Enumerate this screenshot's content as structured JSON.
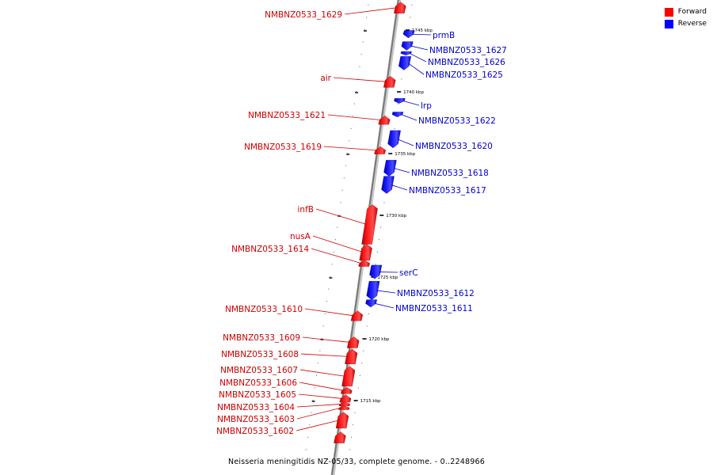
{
  "legend": {
    "forward_label": "Forward",
    "reverse_label": "Reverse",
    "forward_color": "#ff0000",
    "reverse_color": "#0000ff"
  },
  "caption": "Neisseria meningitidis NZ-05/33, complete genome. - 0..2248966",
  "ticks": [
    {
      "label": "1745 kbp",
      "kbp": 1745
    },
    {
      "label": "1740 kbp",
      "kbp": 1740
    },
    {
      "label": "1735 kbp",
      "kbp": 1735
    },
    {
      "label": "1730 kbp",
      "kbp": 1730
    },
    {
      "label": "1725 kbp",
      "kbp": 1725
    },
    {
      "label": "1720 kbp",
      "kbp": 1720
    },
    {
      "label": "1715 kbp",
      "kbp": 1715
    }
  ],
  "features": [
    {
      "name": "NMBNZ0533_1629",
      "strand": "forward",
      "start_kbp": 1746.3,
      "end_kbp": 1747.2
    },
    {
      "name": "prmB",
      "strand": "reverse",
      "start_kbp": 1744.3,
      "end_kbp": 1744.9
    },
    {
      "name": "NMBNZ0533_1627",
      "strand": "reverse",
      "start_kbp": 1743.3,
      "end_kbp": 1744.0
    },
    {
      "name": "NMBNZ0533_1626",
      "strand": "reverse",
      "start_kbp": 1742.9,
      "end_kbp": 1743.2
    },
    {
      "name": "NMBNZ0533_1625",
      "strand": "reverse",
      "start_kbp": 1741.7,
      "end_kbp": 1742.8
    },
    {
      "name": "air",
      "strand": "forward",
      "start_kbp": 1740.3,
      "end_kbp": 1741.2
    },
    {
      "name": "lrp",
      "strand": "reverse",
      "start_kbp": 1739.0,
      "end_kbp": 1739.4
    },
    {
      "name": "NMBNZ0533_1622",
      "strand": "reverse",
      "start_kbp": 1737.9,
      "end_kbp": 1738.3
    },
    {
      "name": "NMBNZ0533_1621",
      "strand": "forward",
      "start_kbp": 1737.3,
      "end_kbp": 1738.0
    },
    {
      "name": "NMBNZ0533_1620",
      "strand": "reverse",
      "start_kbp": 1735.4,
      "end_kbp": 1736.8
    },
    {
      "name": "NMBNZ0533_1619",
      "strand": "forward",
      "start_kbp": 1734.9,
      "end_kbp": 1735.5
    },
    {
      "name": "NMBNZ0533_1618",
      "strand": "reverse",
      "start_kbp": 1733.1,
      "end_kbp": 1734.4
    },
    {
      "name": "NMBNZ0533_1617",
      "strand": "reverse",
      "start_kbp": 1731.7,
      "end_kbp": 1733.1
    },
    {
      "name": "infB",
      "strand": "forward",
      "start_kbp": 1727.6,
      "end_kbp": 1730.8
    },
    {
      "name": "nusA",
      "strand": "forward",
      "start_kbp": 1726.3,
      "end_kbp": 1727.6
    },
    {
      "name": "NMBNZ0533_1614",
      "strand": "forward",
      "start_kbp": 1725.8,
      "end_kbp": 1726.3
    },
    {
      "name": "serC",
      "strand": "reverse",
      "start_kbp": 1724.8,
      "end_kbp": 1725.9
    },
    {
      "name": "NMBNZ0533_1612",
      "strand": "reverse",
      "start_kbp": 1723.1,
      "end_kbp": 1724.6
    },
    {
      "name": "NMBNZ0533_1611",
      "strand": "reverse",
      "start_kbp": 1722.5,
      "end_kbp": 1723.1
    },
    {
      "name": "NMBNZ0533_1610",
      "strand": "forward",
      "start_kbp": 1721.4,
      "end_kbp": 1722.2
    },
    {
      "name": "NMBNZ0533_1609",
      "strand": "forward",
      "start_kbp": 1719.2,
      "end_kbp": 1720.1
    },
    {
      "name": "NMBNZ0533_1608",
      "strand": "forward",
      "start_kbp": 1717.9,
      "end_kbp": 1719.1
    },
    {
      "name": "NMBNZ0533_1607",
      "strand": "forward",
      "start_kbp": 1716.1,
      "end_kbp": 1717.7
    },
    {
      "name": "NMBNZ0533_1606",
      "strand": "forward",
      "start_kbp": 1715.5,
      "end_kbp": 1716.0
    },
    {
      "name": "NMBNZ0533_1605",
      "strand": "forward",
      "start_kbp": 1714.8,
      "end_kbp": 1715.4
    },
    {
      "name": "NMBNZ0533_1604",
      "strand": "forward",
      "start_kbp": 1714.5,
      "end_kbp": 1714.8
    },
    {
      "name": "NMBNZ0533_1603",
      "strand": "forward",
      "start_kbp": 1714.2,
      "end_kbp": 1714.5
    },
    {
      "name": "NMBNZ0533_1602",
      "strand": "forward",
      "start_kbp": 1712.7,
      "end_kbp": 1714.0
    },
    {
      "name": "",
      "strand": "forward",
      "start_kbp": 1711.5,
      "end_kbp": 1712.4
    }
  ]
}
